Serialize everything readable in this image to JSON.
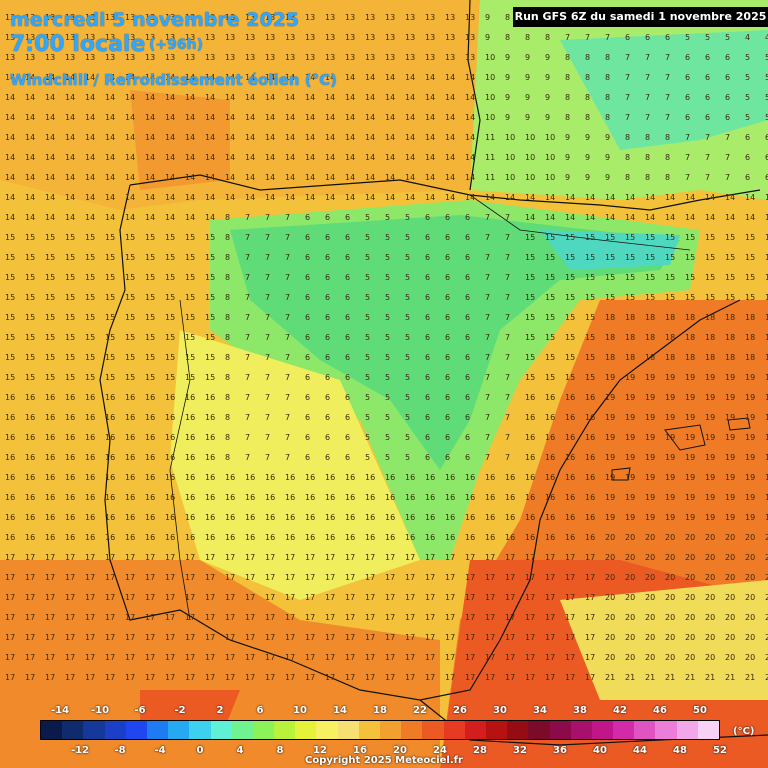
{
  "header": {
    "date_line": "mercredi 5 novembre 2025",
    "time_line": "7:00 locale",
    "lead_time": "(+96h)",
    "variable": "Windchill / Refroidissement éolien (°C)",
    "run_label": "Run GFS 6Z du samedi 1 novembre 2025"
  },
  "legend": {
    "unit": "(°C)",
    "top_ticks": [
      "-14",
      "-10",
      "-6",
      "-2",
      "2",
      "6",
      "10",
      "14",
      "18",
      "22",
      "26",
      "30",
      "34",
      "38",
      "42",
      "46",
      "50"
    ],
    "bottom_ticks": [
      "-12",
      "-8",
      "-4",
      "0",
      "4",
      "8",
      "12",
      "16",
      "20",
      "24",
      "28",
      "32",
      "36",
      "40",
      "44",
      "48",
      "52"
    ],
    "colors": [
      "#0a1a4a",
      "#102a6e",
      "#15389a",
      "#1c3fc8",
      "#2046f0",
      "#1f7bf2",
      "#27a9f2",
      "#3dd1f0",
      "#5ff0d5",
      "#6ff28f",
      "#8cf25a",
      "#b9f23a",
      "#e4f23a",
      "#f7f060",
      "#f6e072",
      "#f4c23a",
      "#f3a12e",
      "#f07b26",
      "#ec5a24",
      "#e63a23",
      "#d41d1d",
      "#b61212",
      "#960c14",
      "#7c0a2a",
      "#8a0a4a",
      "#a8106e",
      "#c0168a",
      "#d22aa8",
      "#e054c2",
      "#ea7ed8",
      "#f2a8e8",
      "#f8d2f4"
    ]
  },
  "footer": {
    "copyright": "Copyright 2025 Meteociel.fr"
  },
  "map": {
    "regions": [
      {
        "name": "atlantic-west",
        "color": "#f4c23a"
      },
      {
        "name": "iberia-interior",
        "color": "#7fe07a"
      },
      {
        "name": "mediterranean",
        "color": "#f07b26"
      }
    ]
  }
}
